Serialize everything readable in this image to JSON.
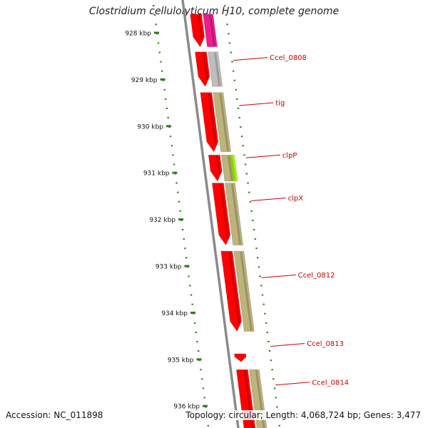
{
  "title": "Clostridium cellulolyticum H10, complete genome",
  "footer": {
    "accession": "Accession: NC_011898",
    "summary": "Topology: circular; Length: 4,068,724 bp; Genes: 3,477"
  },
  "colors": {
    "tick": "#2e7d1e",
    "tick_label": "#111111",
    "backbone": "#8a8a8a",
    "gene_label": "#cc0000",
    "cds_red": "#ff0000",
    "khaki": "#bdb47c",
    "gray": "#bdbdbd",
    "magenta": "#ee1c8c",
    "lime": "#a7ff00"
  },
  "ruler": {
    "ticks": [
      {
        "kbp": 928,
        "label": "928 kbp"
      },
      {
        "kbp": 929,
        "label": "929 kbp"
      },
      {
        "kbp": 930,
        "label": "930 kbp"
      },
      {
        "kbp": 931,
        "label": "931 kbp"
      },
      {
        "kbp": 932,
        "label": "932 kbp"
      },
      {
        "kbp": 933,
        "label": "933 kbp"
      },
      {
        "kbp": 934,
        "label": "934 kbp"
      },
      {
        "kbp": 935,
        "label": "935 kbp"
      },
      {
        "kbp": 936,
        "label": "936 kbp"
      }
    ]
  },
  "gene_labels": [
    {
      "name": "Ccel_0808",
      "kbp": 928.59
    },
    {
      "name": "tig",
      "kbp": 929.56
    },
    {
      "name": "clpP",
      "kbp": 930.68
    },
    {
      "name": "clpX",
      "kbp": 931.6
    },
    {
      "name": "Ccel_0812",
      "kbp": 933.25
    },
    {
      "name": "Ccel_0813",
      "kbp": 934.72
    },
    {
      "name": "Ccel_0814",
      "kbp": 935.55
    }
  ],
  "features": [
    {
      "start": 927.6,
      "end": 928.3,
      "ring": "red",
      "color": "cds_red",
      "arrow": true
    },
    {
      "start": 927.6,
      "end": 928.3,
      "ring": "inner",
      "color": "magenta",
      "arrow": false
    },
    {
      "start": 928.41,
      "end": 929.15,
      "ring": "red",
      "color": "cds_red",
      "arrow": true
    },
    {
      "start": 928.41,
      "end": 929.15,
      "ring": "inner",
      "color": "gray",
      "arrow": false
    },
    {
      "start": 929.28,
      "end": 930.55,
      "ring": "red",
      "color": "cds_red",
      "arrow": true
    },
    {
      "start": 929.28,
      "end": 930.55,
      "ring": "inner",
      "color": "khaki",
      "arrow": false
    },
    {
      "start": 930.62,
      "end": 931.18,
      "ring": "red",
      "color": "cds_red",
      "arrow": true
    },
    {
      "start": 930.62,
      "end": 931.18,
      "ring": "inner",
      "color": "khaki",
      "arrow": false
    },
    {
      "start": 930.62,
      "end": 931.18,
      "ring": "inner2",
      "color": "lime",
      "arrow": false
    },
    {
      "start": 931.22,
      "end": 932.55,
      "ring": "red",
      "color": "cds_red",
      "arrow": true
    },
    {
      "start": 931.22,
      "end": 932.55,
      "ring": "inner",
      "color": "khaki",
      "arrow": false
    },
    {
      "start": 932.68,
      "end": 934.4,
      "ring": "red",
      "color": "cds_red",
      "arrow": true
    },
    {
      "start": 932.68,
      "end": 934.4,
      "ring": "inner",
      "color": "khaki",
      "arrow": false
    },
    {
      "start": 934.88,
      "end": 935.05,
      "ring": "red",
      "color": "cds_red",
      "arrow": true
    },
    {
      "start": 935.22,
      "end": 936.5,
      "ring": "red",
      "color": "cds_red",
      "arrow": false
    },
    {
      "start": 935.22,
      "end": 936.5,
      "ring": "inner",
      "color": "khaki",
      "arrow": false
    }
  ]
}
